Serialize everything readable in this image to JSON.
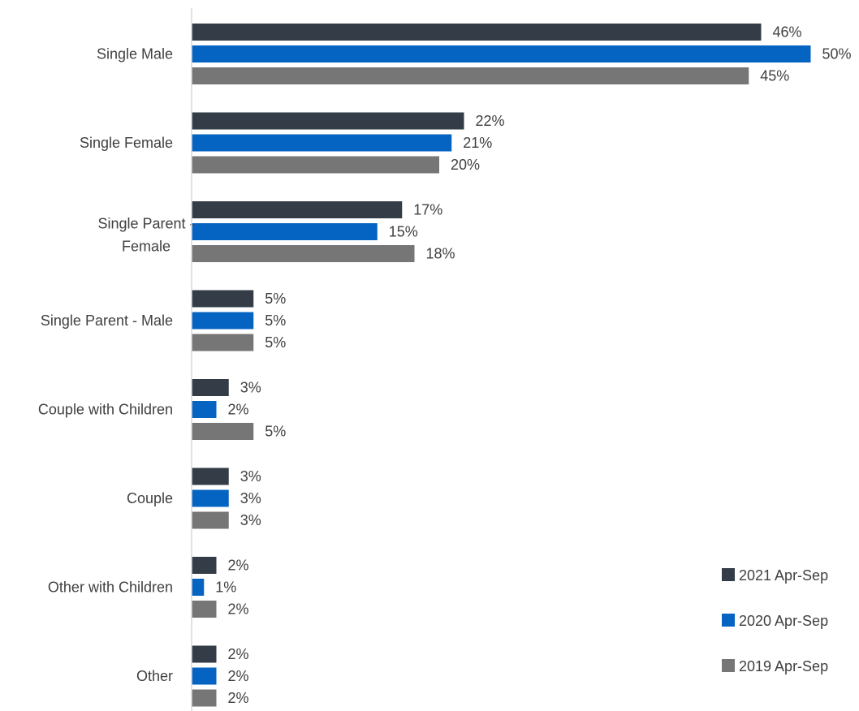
{
  "chart_data": {
    "type": "bar",
    "orientation": "horizontal",
    "title": "",
    "xlabel": "",
    "ylabel": "",
    "categories": [
      "Single Male",
      "Single Female",
      "Single Parent - Female",
      "Single Parent - Male",
      "Couple with Children",
      "Couple",
      "Other with Children",
      "Other"
    ],
    "series": [
      {
        "name": "2021 Apr-Sep",
        "color": "#333c47",
        "values": [
          46,
          22,
          17,
          5,
          3,
          3,
          2,
          2
        ],
        "labels": [
          "46%",
          "22%",
          "17%",
          "5%",
          "3%",
          "3%",
          "2%",
          "2%"
        ]
      },
      {
        "name": "2020 Apr-Sep",
        "color": "#0563c1",
        "values": [
          50,
          21,
          15,
          5,
          2,
          3,
          1,
          2
        ],
        "labels": [
          "50%",
          "21%",
          "15%",
          "5%",
          "2%",
          "3%",
          "1%",
          "2%"
        ]
      },
      {
        "name": "2019 Apr-Sep",
        "color": "#767676",
        "values": [
          45,
          20,
          18,
          5,
          5,
          3,
          2,
          2
        ],
        "labels": [
          "45%",
          "20%",
          "18%",
          "5%",
          "5%",
          "3%",
          "2%",
          "2%"
        ]
      }
    ],
    "xlim": [
      0,
      50
    ],
    "grid": false,
    "legend_position": "bottom-right",
    "value_unit": "%"
  }
}
